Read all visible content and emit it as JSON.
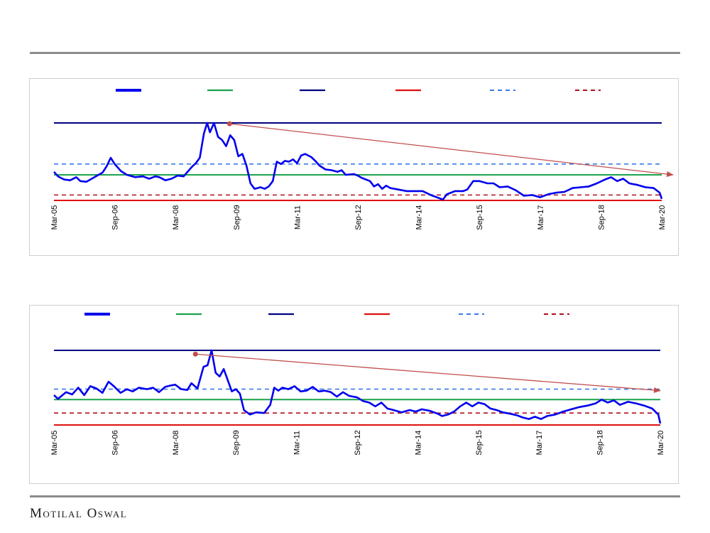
{
  "brand": {
    "name": "Motilal Oswal"
  },
  "x_ticks": [
    "Mar-05",
    "Sep-06",
    "Mar-08",
    "Sep-09",
    "Mar-11",
    "Sep-12",
    "Mar-14",
    "Sep-15",
    "Mar-17",
    "Sep-18",
    "Mar-20"
  ],
  "chart_data": [
    {
      "type": "line",
      "title": "",
      "xlabel": "",
      "ylabel": "",
      "x_range": [
        "Mar-05",
        "Mar-20"
      ],
      "y_range": [
        0,
        1
      ],
      "grid": false,
      "legend_position": "top",
      "legend_text": "",
      "colors": {
        "main": "#0000ee",
        "average": "#1aa34a",
        "upper_band": "#000080",
        "lower_band": "#e01010",
        "avg_plus_sd": "#3a7be8",
        "avg_minus_sd": "#b01020",
        "trend_arrow": "#c0504d"
      },
      "reference_lines": {
        "upper_band": 1.0,
        "avg_plus_sd": 0.47,
        "average": 0.33,
        "avg_minus_sd": 0.07,
        "lower_band": 0.0
      },
      "trend_arrow": {
        "start": [
          "Jul-09",
          0.99
        ],
        "end": [
          "May-20",
          0.33
        ]
      },
      "series": [
        {
          "values": [
            [
              0,
              0.37
            ],
            [
              0.1,
              0.31
            ],
            [
              0.25,
              0.27
            ],
            [
              0.4,
              0.26
            ],
            [
              0.55,
              0.3
            ],
            [
              0.65,
              0.25
            ],
            [
              0.8,
              0.24
            ],
            [
              1.0,
              0.3
            ],
            [
              1.2,
              0.36
            ],
            [
              1.3,
              0.44
            ],
            [
              1.4,
              0.55
            ],
            [
              1.5,
              0.47
            ],
            [
              1.65,
              0.38
            ],
            [
              1.8,
              0.33
            ],
            [
              2.0,
              0.3
            ],
            [
              2.2,
              0.31
            ],
            [
              2.35,
              0.28
            ],
            [
              2.5,
              0.31
            ],
            [
              2.6,
              0.3
            ],
            [
              2.75,
              0.26
            ],
            [
              2.9,
              0.28
            ],
            [
              3.05,
              0.32
            ],
            [
              3.2,
              0.31
            ],
            [
              3.4,
              0.43
            ],
            [
              3.5,
              0.48
            ],
            [
              3.6,
              0.55
            ],
            [
              3.7,
              0.86
            ],
            [
              3.78,
              1.0
            ],
            [
              3.85,
              0.88
            ],
            [
              3.95,
              1.0
            ],
            [
              4.05,
              0.82
            ],
            [
              4.15,
              0.78
            ],
            [
              4.25,
              0.7
            ],
            [
              4.35,
              0.84
            ],
            [
              4.45,
              0.78
            ],
            [
              4.55,
              0.57
            ],
            [
              4.65,
              0.6
            ],
            [
              4.75,
              0.45
            ],
            [
              4.85,
              0.22
            ],
            [
              4.95,
              0.15
            ],
            [
              5.1,
              0.17
            ],
            [
              5.2,
              0.15
            ],
            [
              5.3,
              0.18
            ],
            [
              5.4,
              0.25
            ],
            [
              5.5,
              0.5
            ],
            [
              5.6,
              0.47
            ],
            [
              5.7,
              0.51
            ],
            [
              5.8,
              0.5
            ],
            [
              5.9,
              0.53
            ],
            [
              6.0,
              0.48
            ],
            [
              6.1,
              0.58
            ],
            [
              6.2,
              0.6
            ],
            [
              6.35,
              0.56
            ],
            [
              6.45,
              0.51
            ],
            [
              6.55,
              0.45
            ],
            [
              6.7,
              0.4
            ],
            [
              6.85,
              0.39
            ],
            [
              7.0,
              0.37
            ],
            [
              7.1,
              0.39
            ],
            [
              7.2,
              0.33
            ],
            [
              7.4,
              0.34
            ],
            [
              7.5,
              0.32
            ],
            [
              7.6,
              0.29
            ],
            [
              7.8,
              0.25
            ],
            [
              7.9,
              0.18
            ],
            [
              8.0,
              0.21
            ],
            [
              8.1,
              0.15
            ],
            [
              8.2,
              0.19
            ],
            [
              8.3,
              0.16
            ],
            [
              8.5,
              0.14
            ],
            [
              8.7,
              0.12
            ],
            [
              8.9,
              0.12
            ],
            [
              9.1,
              0.12
            ],
            [
              9.3,
              0.07
            ],
            [
              9.5,
              0.03
            ],
            [
              9.6,
              0.01
            ],
            [
              9.7,
              0.08
            ],
            [
              9.9,
              0.12
            ],
            [
              10.1,
              0.12
            ],
            [
              10.2,
              0.14
            ],
            [
              10.35,
              0.25
            ],
            [
              10.5,
              0.25
            ],
            [
              10.7,
              0.22
            ],
            [
              10.85,
              0.22
            ],
            [
              11.0,
              0.17
            ],
            [
              11.2,
              0.18
            ],
            [
              11.4,
              0.13
            ],
            [
              11.6,
              0.06
            ],
            [
              11.8,
              0.07
            ],
            [
              12.0,
              0.04
            ],
            [
              12.2,
              0.08
            ],
            [
              12.4,
              0.1
            ],
            [
              12.6,
              0.11
            ],
            [
              12.8,
              0.16
            ],
            [
              13.0,
              0.17
            ],
            [
              13.2,
              0.18
            ],
            [
              13.4,
              0.22
            ],
            [
              13.6,
              0.27
            ],
            [
              13.75,
              0.3
            ],
            [
              13.9,
              0.25
            ],
            [
              14.05,
              0.28
            ],
            [
              14.2,
              0.22
            ],
            [
              14.4,
              0.2
            ],
            [
              14.6,
              0.17
            ],
            [
              14.8,
              0.16
            ],
            [
              14.95,
              0.1
            ],
            [
              15.0,
              0.02
            ]
          ]
        }
      ]
    },
    {
      "type": "line",
      "title": "",
      "xlabel": "",
      "ylabel": "",
      "x_range": [
        "Mar-05",
        "Mar-20"
      ],
      "y_range": [
        0,
        1
      ],
      "grid": false,
      "legend_position": "top",
      "legend_text": "",
      "colors": {
        "main": "#0000ee",
        "average": "#1aa34a",
        "upper_band": "#000080",
        "lower_band": "#e01010",
        "avg_plus_sd": "#3a7be8",
        "avg_minus_sd": "#b01020",
        "trend_arrow": "#c0504d"
      },
      "reference_lines": {
        "upper_band": 1.0,
        "avg_plus_sd": 0.48,
        "average": 0.34,
        "avg_minus_sd": 0.16,
        "lower_band": 0.0
      },
      "trend_arrow": {
        "start": [
          "Sep-08",
          0.95
        ],
        "end": [
          "Mar-20",
          0.46
        ]
      },
      "series": [
        {
          "values": [
            [
              0,
              0.4
            ],
            [
              0.1,
              0.35
            ],
            [
              0.3,
              0.44
            ],
            [
              0.45,
              0.41
            ],
            [
              0.6,
              0.5
            ],
            [
              0.75,
              0.4
            ],
            [
              0.9,
              0.52
            ],
            [
              1.05,
              0.49
            ],
            [
              1.2,
              0.43
            ],
            [
              1.35,
              0.58
            ],
            [
              1.5,
              0.51
            ],
            [
              1.65,
              0.43
            ],
            [
              1.8,
              0.48
            ],
            [
              1.95,
              0.45
            ],
            [
              2.1,
              0.5
            ],
            [
              2.3,
              0.48
            ],
            [
              2.45,
              0.5
            ],
            [
              2.6,
              0.44
            ],
            [
              2.75,
              0.51
            ],
            [
              2.9,
              0.53
            ],
            [
              3.0,
              0.54
            ],
            [
              3.15,
              0.48
            ],
            [
              3.3,
              0.47
            ],
            [
              3.4,
              0.56
            ],
            [
              3.55,
              0.49
            ],
            [
              3.7,
              0.78
            ],
            [
              3.8,
              0.8
            ],
            [
              3.9,
              1.0
            ],
            [
              4.0,
              0.7
            ],
            [
              4.1,
              0.65
            ],
            [
              4.2,
              0.75
            ],
            [
              4.3,
              0.6
            ],
            [
              4.4,
              0.45
            ],
            [
              4.5,
              0.48
            ],
            [
              4.6,
              0.42
            ],
            [
              4.7,
              0.2
            ],
            [
              4.85,
              0.14
            ],
            [
              5.0,
              0.17
            ],
            [
              5.2,
              0.16
            ],
            [
              5.35,
              0.27
            ],
            [
              5.45,
              0.5
            ],
            [
              5.55,
              0.46
            ],
            [
              5.65,
              0.5
            ],
            [
              5.8,
              0.48
            ],
            [
              5.95,
              0.52
            ],
            [
              6.1,
              0.45
            ],
            [
              6.25,
              0.46
            ],
            [
              6.4,
              0.51
            ],
            [
              6.55,
              0.45
            ],
            [
              6.7,
              0.46
            ],
            [
              6.85,
              0.44
            ],
            [
              7.0,
              0.38
            ],
            [
              7.15,
              0.44
            ],
            [
              7.3,
              0.39
            ],
            [
              7.5,
              0.37
            ],
            [
              7.65,
              0.32
            ],
            [
              7.8,
              0.3
            ],
            [
              7.95,
              0.25
            ],
            [
              8.1,
              0.3
            ],
            [
              8.25,
              0.22
            ],
            [
              8.4,
              0.2
            ],
            [
              8.6,
              0.17
            ],
            [
              8.8,
              0.2
            ],
            [
              8.95,
              0.18
            ],
            [
              9.1,
              0.21
            ],
            [
              9.3,
              0.19
            ],
            [
              9.5,
              0.15
            ],
            [
              9.6,
              0.12
            ],
            [
              9.75,
              0.14
            ],
            [
              9.9,
              0.18
            ],
            [
              10.05,
              0.25
            ],
            [
              10.2,
              0.3
            ],
            [
              10.35,
              0.25
            ],
            [
              10.5,
              0.3
            ],
            [
              10.65,
              0.28
            ],
            [
              10.8,
              0.22
            ],
            [
              10.95,
              0.2
            ],
            [
              11.1,
              0.17
            ],
            [
              11.3,
              0.15
            ],
            [
              11.45,
              0.13
            ],
            [
              11.6,
              0.1
            ],
            [
              11.75,
              0.08
            ],
            [
              11.9,
              0.11
            ],
            [
              12.05,
              0.08
            ],
            [
              12.2,
              0.12
            ],
            [
              12.4,
              0.14
            ],
            [
              12.6,
              0.18
            ],
            [
              12.8,
              0.21
            ],
            [
              13.0,
              0.24
            ],
            [
              13.2,
              0.26
            ],
            [
              13.4,
              0.29
            ],
            [
              13.55,
              0.34
            ],
            [
              13.7,
              0.3
            ],
            [
              13.85,
              0.33
            ],
            [
              14.0,
              0.27
            ],
            [
              14.2,
              0.31
            ],
            [
              14.4,
              0.29
            ],
            [
              14.6,
              0.26
            ],
            [
              14.8,
              0.22
            ],
            [
              14.95,
              0.14
            ],
            [
              15.0,
              0.02
            ]
          ]
        }
      ]
    }
  ]
}
